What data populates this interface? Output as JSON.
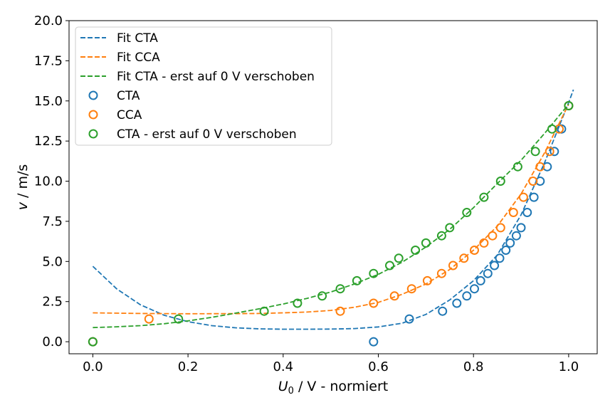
{
  "chart_data": {
    "type": "scatter",
    "xlabel_main": "U",
    "xlabel_sub": "0",
    "xlabel_rest": " / V  - normiert",
    "ylabel_main": "v",
    "ylabel_rest": " / m/s",
    "xlim": [
      -0.05,
      1.06
    ],
    "ylim": [
      -0.75,
      20.0
    ],
    "xticks": [
      0.0,
      0.2,
      0.4,
      0.6,
      0.8,
      1.0
    ],
    "xtick_labels": [
      "0.0",
      "0.2",
      "0.4",
      "0.6",
      "0.8",
      "1.0"
    ],
    "yticks": [
      0.0,
      2.5,
      5.0,
      7.5,
      10.0,
      12.5,
      15.0,
      17.5,
      20.0
    ],
    "ytick_labels": [
      "0.0",
      "2.5",
      "5.0",
      "7.5",
      "10.0",
      "12.5",
      "15.0",
      "17.5",
      "20.0"
    ],
    "grid": false,
    "legend_position": "top-left",
    "colors": {
      "cta": "#1f77b4",
      "cca": "#ff7f0e",
      "cta_shift": "#2ca02c"
    },
    "fits": [
      {
        "name": "Fit CTA",
        "color": "#1f77b4",
        "style": "dashed",
        "x": [
          0.0,
          0.05,
          0.1,
          0.15,
          0.2,
          0.25,
          0.3,
          0.35,
          0.4,
          0.45,
          0.5,
          0.55,
          0.6,
          0.65,
          0.7,
          0.75,
          0.8,
          0.85,
          0.9,
          0.95,
          1.0,
          1.01
        ],
        "y": [
          4.7,
          3.3,
          2.3,
          1.65,
          1.25,
          1.0,
          0.87,
          0.8,
          0.78,
          0.78,
          0.79,
          0.82,
          0.92,
          1.15,
          1.7,
          2.6,
          3.8,
          5.4,
          7.9,
          11.2,
          14.9,
          15.7
        ]
      },
      {
        "name": "Fit CCA",
        "color": "#ff7f0e",
        "style": "dashed",
        "x": [
          0.0,
          0.1,
          0.2,
          0.3,
          0.35,
          0.4,
          0.45,
          0.5,
          0.55,
          0.6,
          0.65,
          0.7,
          0.75,
          0.8,
          0.85,
          0.9,
          0.95,
          1.0
        ],
        "y": [
          1.8,
          1.76,
          1.74,
          1.75,
          1.76,
          1.8,
          1.85,
          1.95,
          2.15,
          2.45,
          2.95,
          3.6,
          4.5,
          5.7,
          7.2,
          9.2,
          11.8,
          14.8
        ]
      },
      {
        "name": "Fit CTA - erst auf 0 V verschoben",
        "color": "#2ca02c",
        "style": "dashed",
        "x": [
          0.0,
          0.05,
          0.1,
          0.15,
          0.2,
          0.25,
          0.3,
          0.35,
          0.4,
          0.45,
          0.5,
          0.55,
          0.6,
          0.65,
          0.7,
          0.75,
          0.8,
          0.85,
          0.9,
          0.95,
          1.0
        ],
        "y": [
          0.88,
          0.93,
          1.0,
          1.12,
          1.3,
          1.52,
          1.78,
          2.05,
          2.35,
          2.7,
          3.1,
          3.6,
          4.2,
          4.95,
          5.9,
          7.0,
          8.35,
          9.85,
          11.3,
          13.0,
          14.8
        ]
      }
    ],
    "series": [
      {
        "name": "CTA",
        "color": "#1f77b4",
        "x": [
          0.0,
          0.59,
          0.665,
          0.735,
          0.765,
          0.786,
          0.802,
          0.815,
          0.83,
          0.844,
          0.855,
          0.868,
          0.877,
          0.89,
          0.9,
          0.913,
          0.927,
          0.94,
          0.955,
          0.97,
          0.985,
          1.0
        ],
        "y": [
          0.0,
          0.0,
          1.42,
          1.9,
          2.4,
          2.85,
          3.3,
          3.8,
          4.25,
          4.75,
          5.2,
          5.7,
          6.15,
          6.6,
          7.1,
          8.05,
          9.0,
          10.0,
          10.9,
          11.85,
          13.25,
          14.7
        ]
      },
      {
        "name": "CCA",
        "color": "#ff7f0e",
        "x": [
          0.0,
          0.118,
          0.52,
          0.59,
          0.634,
          0.67,
          0.703,
          0.733,
          0.757,
          0.78,
          0.802,
          0.822,
          0.84,
          0.857,
          0.884,
          0.905,
          0.925,
          0.94,
          0.96,
          0.98,
          1.0
        ],
        "y": [
          0.0,
          1.42,
          1.9,
          2.4,
          2.85,
          3.3,
          3.8,
          4.25,
          4.75,
          5.2,
          5.7,
          6.15,
          6.6,
          7.1,
          8.05,
          9.0,
          10.0,
          10.9,
          11.85,
          13.25,
          14.7
        ]
      },
      {
        "name": "CTA - erst auf 0 V verschoben",
        "color": "#2ca02c",
        "x": [
          0.0,
          0.18,
          0.36,
          0.43,
          0.482,
          0.52,
          0.555,
          0.59,
          0.624,
          0.643,
          0.678,
          0.7,
          0.733,
          0.75,
          0.786,
          0.822,
          0.857,
          0.893,
          0.93,
          0.965,
          1.0
        ],
        "y": [
          0.0,
          1.42,
          1.9,
          2.4,
          2.85,
          3.3,
          3.8,
          4.25,
          4.75,
          5.2,
          5.7,
          6.15,
          6.6,
          7.1,
          8.05,
          9.0,
          10.0,
          10.9,
          11.85,
          13.25,
          14.7
        ]
      }
    ]
  }
}
